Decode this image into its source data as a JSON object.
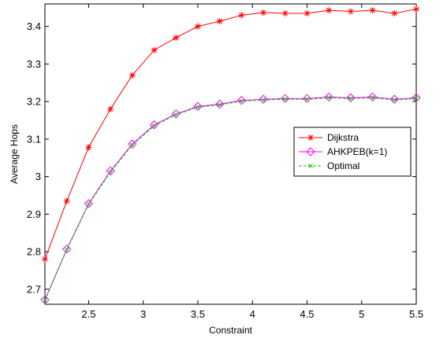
{
  "chart_data": {
    "type": "line",
    "title": "",
    "xlabel": "Constraint",
    "ylabel": "Average Hops",
    "xlim": [
      2.1,
      5.5
    ],
    "ylim": [
      2.66,
      3.46
    ],
    "xticks": [
      2.5,
      3,
      3.5,
      4,
      4.5,
      5,
      5.5
    ],
    "xtick_labels": [
      "2.5",
      "3",
      "3.5",
      "4",
      "4.5",
      "5",
      "5.5"
    ],
    "yticks": [
      2.7,
      2.8,
      2.9,
      3.0,
      3.1,
      3.2,
      3.3,
      3.4
    ],
    "ytick_labels": [
      "2.7",
      "2.8",
      "2.9",
      "3",
      "3.1",
      "3.2",
      "3.3",
      "3.4"
    ],
    "grid": false,
    "legend_position": "right",
    "x": [
      2.1,
      2.3,
      2.5,
      2.7,
      2.9,
      3.1,
      3.3,
      3.5,
      3.7,
      3.9,
      4.1,
      4.3,
      4.5,
      4.7,
      4.9,
      5.1,
      5.3,
      5.5
    ],
    "series": [
      {
        "name": "Dijkstra",
        "color": "#ff0000",
        "marker": "asterisk",
        "line_style": "solid",
        "values": [
          2.78,
          2.935,
          3.078,
          3.18,
          3.27,
          3.337,
          3.37,
          3.4,
          3.414,
          3.43,
          3.437,
          3.435,
          3.435,
          3.443,
          3.44,
          3.443,
          3.435,
          3.446
        ]
      },
      {
        "name": "AHKPEB(k=1)",
        "color": "#ff00ff",
        "marker": "diamond",
        "line_style": "solid",
        "values": [
          2.672,
          2.807,
          2.928,
          3.015,
          3.087,
          3.138,
          3.167,
          3.187,
          3.193,
          3.203,
          3.206,
          3.208,
          3.208,
          3.212,
          3.21,
          3.212,
          3.206,
          3.21
        ]
      },
      {
        "name": "Optimal",
        "color": "#00cc00",
        "marker": "x",
        "line_style": "dashed",
        "values": [
          2.67,
          2.805,
          2.926,
          3.012,
          3.084,
          3.135,
          3.165,
          3.185,
          3.191,
          3.201,
          3.204,
          3.206,
          3.206,
          3.21,
          3.208,
          3.21,
          3.204,
          3.208
        ]
      }
    ]
  }
}
